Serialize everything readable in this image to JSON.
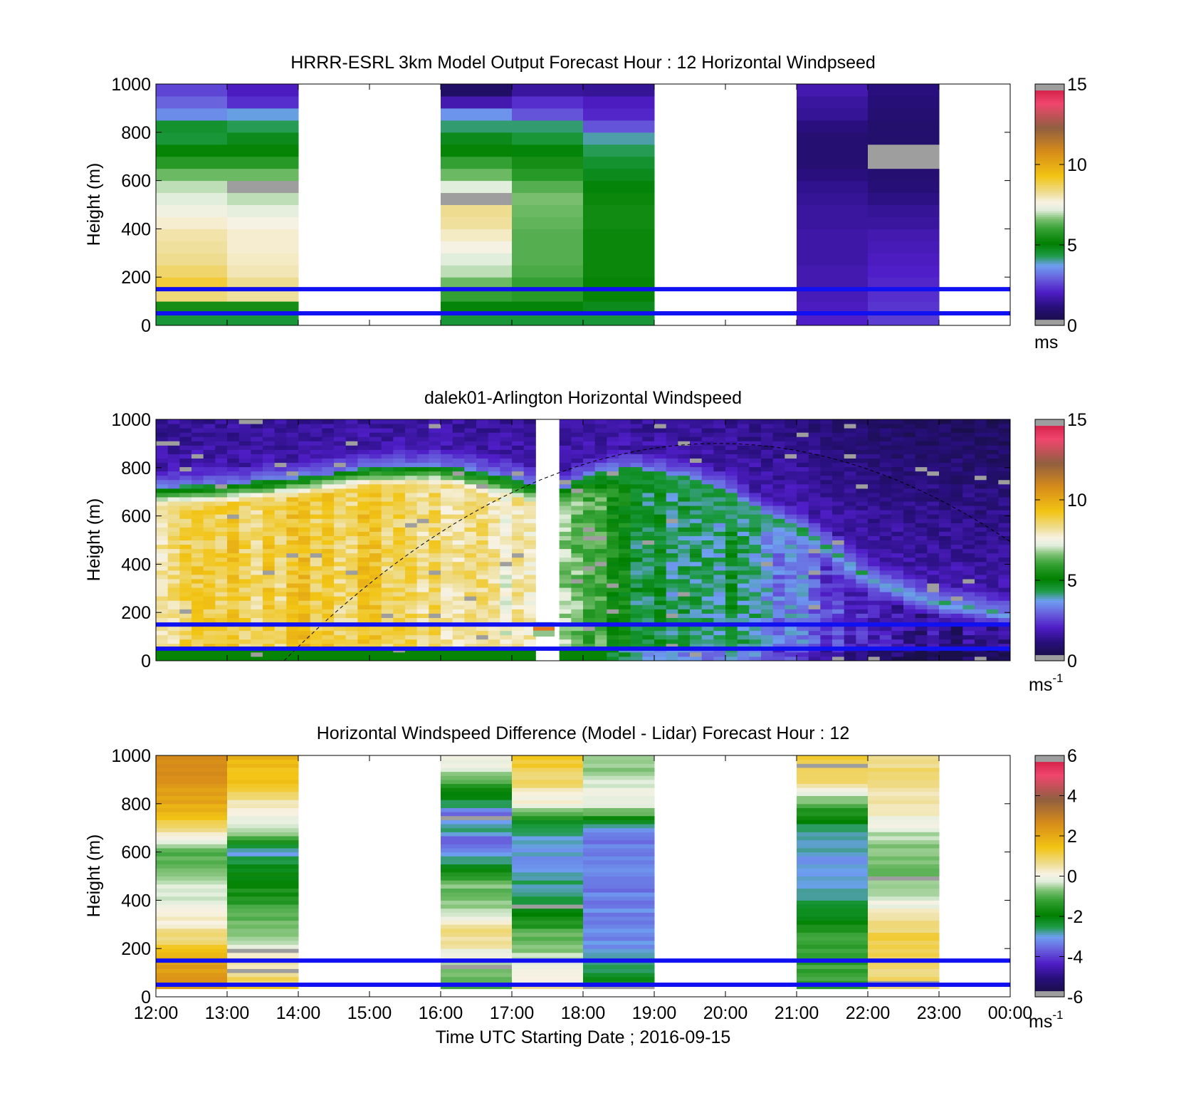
{
  "chart_data": [
    {
      "type": "heatmap",
      "title": "HRRR-ESRL 3km Model Output   Forecast Hour : 12 Horizontal Windpseed",
      "ylabel": "Height (m)",
      "ylim": [
        0,
        1000
      ],
      "yticks": [
        "0",
        "200",
        "400",
        "600",
        "800",
        "1000"
      ],
      "x_ticks": [
        "12:00",
        "13:00",
        "14:00",
        "15:00",
        "16:00",
        "17:00",
        "18:00",
        "19:00",
        "20:00",
        "21:00",
        "22:00",
        "23:00",
        "00:00"
      ],
      "colorbar": {
        "min": 0,
        "max": 15,
        "ticks": [
          "0",
          "5",
          "10",
          "15"
        ],
        "unit": "ms",
        "unit_sup": ""
      },
      "reference_heights_m": [
        50,
        150
      ],
      "columns": [
        {
          "start_hour": 12,
          "values_bottom_to_top": [
            4.5,
            5.5,
            8.5,
            9.0,
            8.6,
            8.3,
            8.2,
            8.1,
            7.8,
            7.5,
            7.2,
            7.0,
            6.5,
            5.8,
            5.2,
            4.5,
            4.6,
            3.5,
            3.0,
            2.6
          ]
        },
        {
          "start_hour": 13,
          "values_bottom_to_top": [
            4.5,
            5.5,
            8.2,
            8.3,
            8.0,
            7.9,
            7.8,
            7.8,
            7.6,
            7.3,
            7.0,
            0.0,
            6.5,
            5.8,
            5.2,
            4.8,
            4.3,
            3.8,
            2.3,
            2.0
          ]
        },
        {
          "start_hour": 16,
          "values_bottom_to_top": [
            4.5,
            5.0,
            6.0,
            6.5,
            7.0,
            7.2,
            7.6,
            7.9,
            8.2,
            8.3,
            0.0,
            7.2,
            6.5,
            6.0,
            5.2,
            4.8,
            4.2,
            3.6,
            1.8,
            0.8
          ]
        },
        {
          "start_hour": 17,
          "values_bottom_to_top": [
            4.5,
            5.0,
            5.8,
            6.0,
            6.2,
            6.3,
            6.3,
            6.3,
            6.4,
            6.5,
            6.6,
            6.3,
            5.8,
            5.5,
            5.0,
            4.5,
            4.2,
            2.8,
            2.3,
            1.6
          ]
        },
        {
          "start_hour": 18,
          "values_bottom_to_top": [
            4.5,
            4.8,
            5.2,
            5.2,
            5.3,
            5.3,
            5.3,
            5.3,
            5.4,
            5.4,
            5.3,
            5.0,
            4.8,
            4.6,
            4.3,
            4.0,
            2.8,
            2.2,
            2.0,
            1.5
          ]
        },
        {
          "start_hour": 21,
          "values_bottom_to_top": [
            2.1,
            2.0,
            1.9,
            1.8,
            1.8,
            1.7,
            1.7,
            1.7,
            1.6,
            1.6,
            1.5,
            1.4,
            1.2,
            1.0,
            1.0,
            1.0,
            1.2,
            1.5,
            1.6,
            1.8
          ]
        },
        {
          "start_hour": 22,
          "values_bottom_to_top": [
            2.5,
            2.4,
            2.3,
            2.2,
            2.1,
            2.0,
            1.9,
            1.8,
            1.6,
            1.5,
            1.3,
            1.1,
            1.0,
            0.0,
            0.0,
            0.9,
            0.9,
            1.0,
            1.1,
            1.2
          ]
        }
      ]
    },
    {
      "type": "heatmap",
      "title": "dalek01-Arlington  Horizontal Windspeed",
      "ylabel": "Height (m)",
      "ylim": [
        0,
        1000
      ],
      "yticks": [
        "0",
        "200",
        "400",
        "600",
        "800",
        "1000"
      ],
      "x_ticks": [
        "12:00",
        "13:00",
        "14:00",
        "15:00",
        "16:00",
        "17:00",
        "18:00",
        "19:00",
        "20:00",
        "21:00",
        "22:00",
        "23:00",
        "00:00"
      ],
      "colorbar": {
        "min": 0,
        "max": 15,
        "ticks": [
          "0",
          "5",
          "10",
          "15"
        ],
        "unit": "ms",
        "unit_sup": "-1"
      },
      "reference_heights_m": [
        50,
        150
      ],
      "profile_interval_minutes": 10,
      "data_end_hour": 23.9,
      "missing_interval_hours": [
        17.3,
        17.6
      ],
      "profile_anchors": [
        {
          "hour": 12.0,
          "top_m": 720,
          "inner": 8.5
        },
        {
          "hour": 13.0,
          "top_m": 730,
          "inner": 8.8
        },
        {
          "hour": 14.0,
          "top_m": 760,
          "inner": 9.0
        },
        {
          "hour": 15.0,
          "top_m": 800,
          "inner": 9.0
        },
        {
          "hour": 16.0,
          "top_m": 810,
          "inner": 8.6
        },
        {
          "hour": 17.0,
          "top_m": 760,
          "inner": 7.8
        },
        {
          "hour": 17.6,
          "top_m": 700,
          "inner": 7.6
        },
        {
          "hour": 18.0,
          "top_m": 760,
          "inner": 6.4
        },
        {
          "hour": 18.5,
          "top_m": 800,
          "inner": 5.2
        },
        {
          "hour": 19.0,
          "top_m": 790,
          "inner": 4.6
        },
        {
          "hour": 19.5,
          "top_m": 760,
          "inner": 4.3
        },
        {
          "hour": 20.0,
          "top_m": 710,
          "inner": 4.3
        },
        {
          "hour": 20.5,
          "top_m": 620,
          "inner": 4.0
        },
        {
          "hour": 21.0,
          "top_m": 560,
          "inner": 3.2
        },
        {
          "hour": 21.5,
          "top_m": 470,
          "inner": 2.4
        },
        {
          "hour": 22.0,
          "top_m": 350,
          "inner": 2.0
        },
        {
          "hour": 23.0,
          "top_m": 250,
          "inner": 1.4
        },
        {
          "hour": 24.0,
          "top_m": 200,
          "inner": 1.0
        }
      ],
      "dashed_curve": {
        "start_hour": 13.8,
        "peak_hour": 19.9,
        "peak_m": 900,
        "end_hour": 24.0,
        "end_m": 460
      }
    },
    {
      "type": "heatmap",
      "title": "Horizontal Windspeed Difference (Model - Lidar) Forecast Hour : 12",
      "ylabel": "Height (m)",
      "xlabel": "Time UTC  Starting Date ; 2016-09-15",
      "ylim": [
        0,
        1000
      ],
      "yticks": [
        "0",
        "200",
        "400",
        "600",
        "800",
        "1000"
      ],
      "x_ticks": [
        "12:00",
        "13:00",
        "14:00",
        "15:00",
        "16:00",
        "17:00",
        "18:00",
        "19:00",
        "20:00",
        "21:00",
        "22:00",
        "23:00",
        "00:00"
      ],
      "colorbar": {
        "min": -6,
        "max": 6,
        "ticks": [
          "-6",
          "-4",
          "-2",
          "0",
          "2",
          "4",
          "6"
        ],
        "unit": "ms",
        "unit_sup": "-1"
      },
      "reference_heights_m": [
        50,
        150
      ],
      "columns": [
        {
          "start_hour": 12,
          "anchors": [
            [
              30,
              2.6
            ],
            [
              120,
              2.3
            ],
            [
              200,
              1.2
            ],
            [
              290,
              0.4
            ],
            [
              400,
              -0.2
            ],
            [
              500,
              -0.4
            ],
            [
              600,
              -1.0
            ],
            [
              680,
              0.5
            ],
            [
              800,
              2.0
            ],
            [
              1000,
              2.8
            ]
          ]
        },
        {
          "start_hour": 13,
          "anchors": [
            [
              30,
              1.2
            ],
            [
              150,
              0.4
            ],
            [
              250,
              -0.5
            ],
            [
              400,
              -1.4
            ],
            [
              520,
              -2.0
            ],
            [
              600,
              -2.9
            ],
            [
              680,
              -0.5
            ],
            [
              800,
              0.4
            ],
            [
              900,
              1.4
            ],
            [
              1000,
              1.8
            ]
          ]
        },
        {
          "start_hour": 16,
          "anchors": [
            [
              30,
              -1.4
            ],
            [
              150,
              -0.3
            ],
            [
              260,
              0.8
            ],
            [
              340,
              -0.3
            ],
            [
              480,
              -0.9
            ],
            [
              560,
              -2.6
            ],
            [
              640,
              -3.8
            ],
            [
              700,
              -2.5
            ],
            [
              760,
              -3.4
            ],
            [
              850,
              -1.6
            ],
            [
              950,
              -0.3
            ],
            [
              1000,
              0.2
            ]
          ]
        },
        {
          "start_hour": 17,
          "anchors": [
            [
              30,
              0.5
            ],
            [
              120,
              -0.2
            ],
            [
              260,
              -1.0
            ],
            [
              400,
              -2.4
            ],
            [
              560,
              -3.1
            ],
            [
              700,
              -2.7
            ],
            [
              800,
              0.0
            ],
            [
              900,
              0.9
            ],
            [
              1000,
              1.4
            ]
          ]
        },
        {
          "start_hour": 18,
          "anchors": [
            [
              30,
              -1.8
            ],
            [
              200,
              -3.2
            ],
            [
              650,
              -3.4
            ],
            [
              700,
              -2.8
            ],
            [
              780,
              -0.4
            ],
            [
              850,
              0.0
            ],
            [
              920,
              -0.6
            ],
            [
              1000,
              -0.4
            ]
          ]
        },
        {
          "start_hour": 21,
          "anchors": [
            [
              30,
              -1.2
            ],
            [
              260,
              -1.3
            ],
            [
              400,
              -2.6
            ],
            [
              560,
              -3.2
            ],
            [
              700,
              -2.5
            ],
            [
              820,
              -0.6
            ],
            [
              880,
              0.7
            ],
            [
              1000,
              1.3
            ]
          ]
        },
        {
          "start_hour": 22,
          "anchors": [
            [
              30,
              0.7
            ],
            [
              260,
              1.0
            ],
            [
              380,
              0.0
            ],
            [
              520,
              -1.0
            ],
            [
              650,
              -0.5
            ],
            [
              780,
              0.4
            ],
            [
              860,
              0.5
            ],
            [
              1000,
              0.9
            ]
          ]
        }
      ]
    }
  ]
}
